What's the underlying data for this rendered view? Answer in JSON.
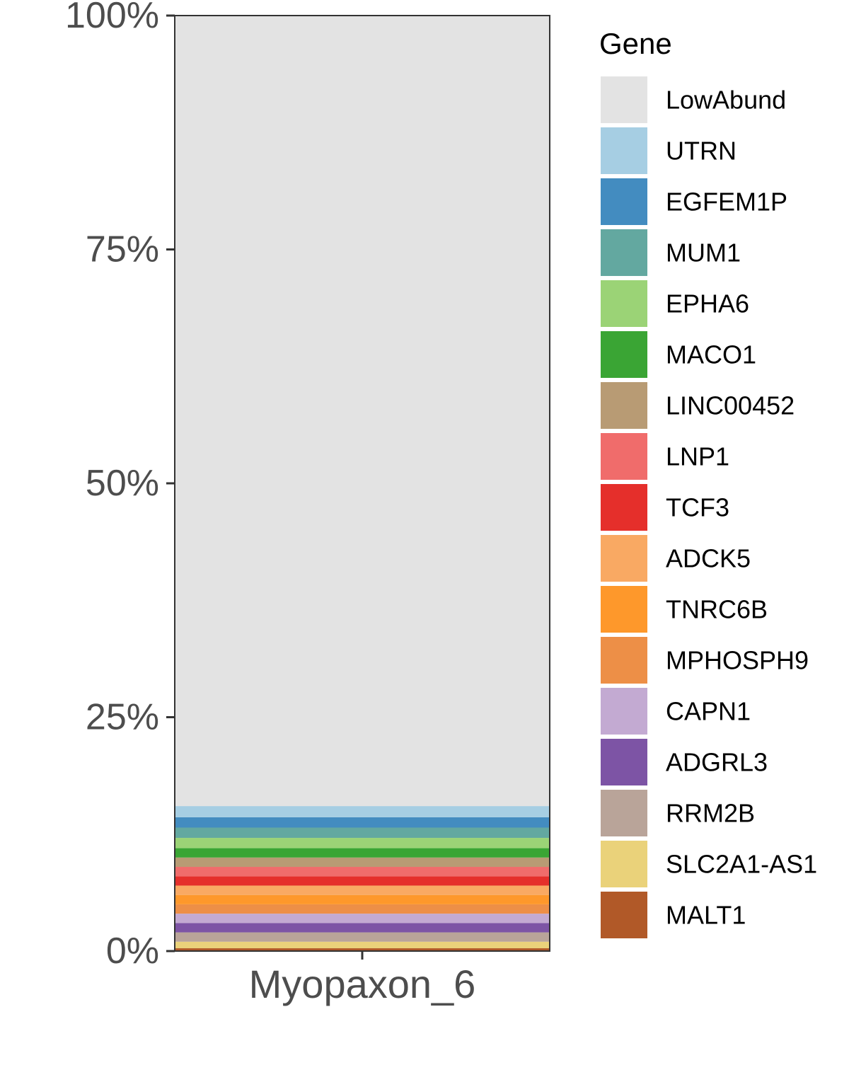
{
  "chart_data": {
    "type": "bar",
    "stacked": true,
    "categories": [
      "Myopaxon_6"
    ],
    "ylim": [
      0,
      100
    ],
    "yticks": [
      "0%",
      "25%",
      "50%",
      "75%",
      "100%"
    ],
    "ytick_values": [
      0,
      25,
      50,
      75,
      100
    ],
    "xlabel": "",
    "ylabel": "",
    "legend_title": "Gene",
    "legend_position": "right",
    "grid": false,
    "series": [
      {
        "name": "LowAbund",
        "color": "#e3e3e3",
        "values": [
          84.5
        ]
      },
      {
        "name": "UTRN",
        "color": "#a6cee3",
        "values": [
          1.2
        ]
      },
      {
        "name": "EGFEM1P",
        "color": "#438cc0",
        "values": [
          1.1
        ]
      },
      {
        "name": "MUM1",
        "color": "#63a8a0",
        "values": [
          1.1
        ]
      },
      {
        "name": "EPHA6",
        "color": "#9bd376",
        "values": [
          1.1
        ]
      },
      {
        "name": "MACO1",
        "color": "#3aa534",
        "values": [
          1.0
        ]
      },
      {
        "name": "LINC00452",
        "color": "#b89b74",
        "values": [
          1.0
        ]
      },
      {
        "name": "LNP1",
        "color": "#f06c6b",
        "values": [
          1.0
        ]
      },
      {
        "name": "TCF3",
        "color": "#e52f2b",
        "values": [
          1.0
        ]
      },
      {
        "name": "ADCK5",
        "color": "#f9a963",
        "values": [
          1.0
        ]
      },
      {
        "name": "TNRC6B",
        "color": "#fe982b",
        "values": [
          1.0
        ]
      },
      {
        "name": "MPHOSPH9",
        "color": "#ed8f47",
        "values": [
          1.0
        ]
      },
      {
        "name": "CAPN1",
        "color": "#c3aad2",
        "values": [
          1.0
        ]
      },
      {
        "name": "ADGRL3",
        "color": "#7d54a5",
        "values": [
          1.0
        ]
      },
      {
        "name": "RRM2B",
        "color": "#b9a499",
        "values": [
          1.0
        ]
      },
      {
        "name": "SLC2A1-AS1",
        "color": "#ead27a",
        "values": [
          0.7
        ]
      },
      {
        "name": "MALT1",
        "color": "#b15928",
        "values": [
          0.3
        ]
      }
    ]
  }
}
